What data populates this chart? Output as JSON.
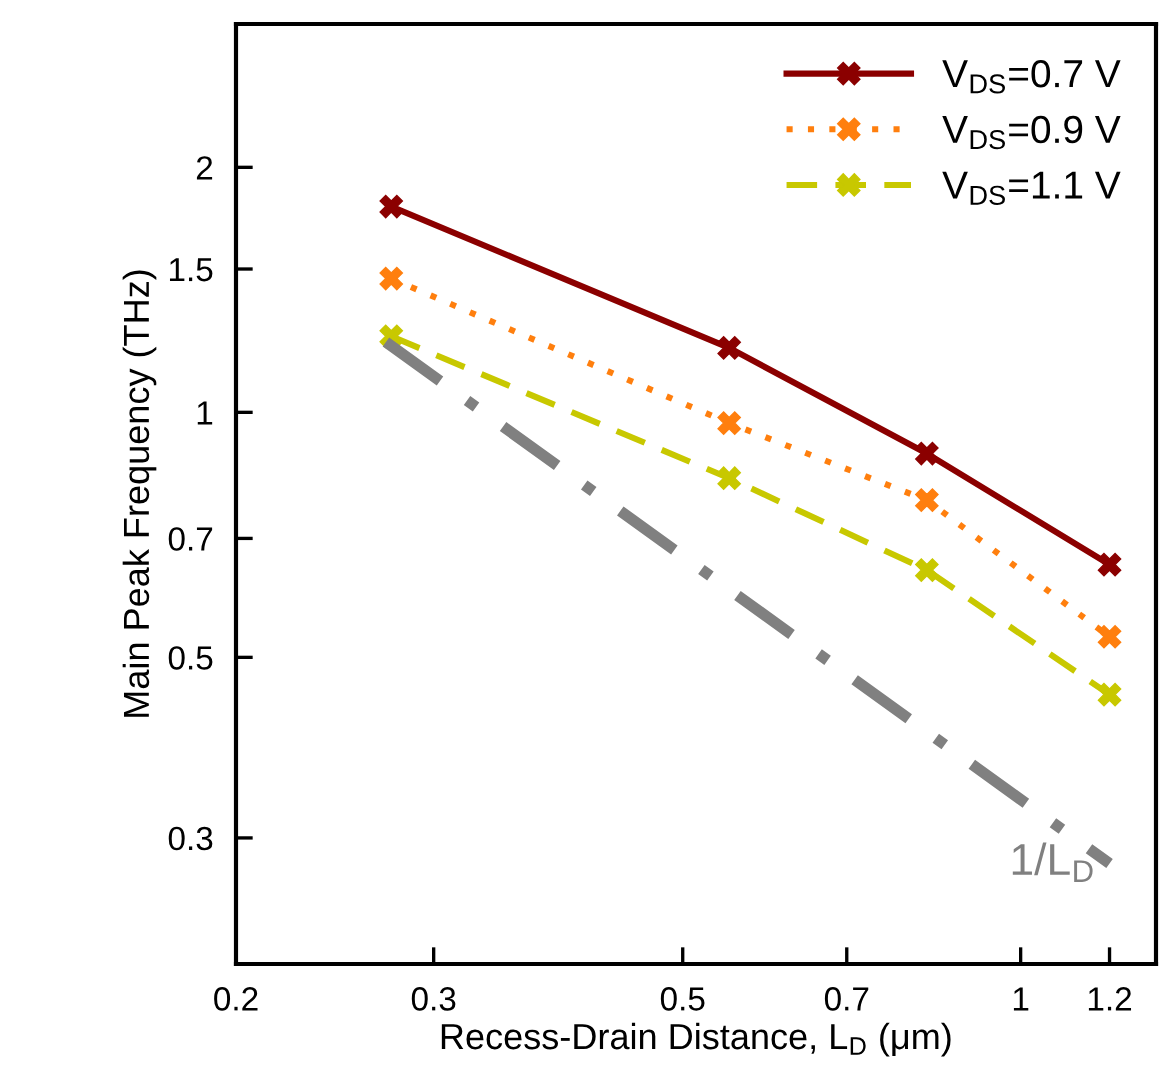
{
  "chart_data": {
    "type": "line",
    "xlabel": "Recess-Drain Distance, L$_{D}$ (μm)",
    "ylabel": "Main Peak Frequency (THz)",
    "log": "xy",
    "grid": false,
    "legend": "top right",
    "marker": "cross",
    "xlim": [
      0.2,
      1.32
    ],
    "ylim": [
      0.21,
      3
    ],
    "xticks": [
      0.2,
      0.3,
      0.5,
      0.7,
      1,
      1.2
    ],
    "yticks": [
      0.3,
      0.5,
      0.7,
      1,
      1.5,
      2
    ],
    "x": [
      0.275,
      0.55,
      0.825,
      1.2
    ],
    "series": [
      {
        "name": "V$_{DS}$=0.7 V",
        "color": "#8b0000",
        "line_style": "solid",
        "values": [
          1.79,
          1.2,
          0.89,
          0.65
        ]
      },
      {
        "name": "V$_{DS}$=0.9 V",
        "color": "#ff7f0e",
        "line_style": "dotted",
        "values": [
          1.46,
          0.97,
          0.78,
          0.53
        ]
      },
      {
        "name": "V$_{DS}$=1.1 V",
        "color": "#c8c800",
        "line_style": "dashed",
        "values": [
          1.24,
          0.83,
          0.64,
          0.45
        ]
      },
      {
        "name": "1/L$_{D}$",
        "color": "#808080",
        "line_style": "dashdot",
        "marker": "none",
        "x": [
          0.272,
          1.2
        ],
        "values": [
          1.22,
          0.279
        ]
      }
    ]
  }
}
